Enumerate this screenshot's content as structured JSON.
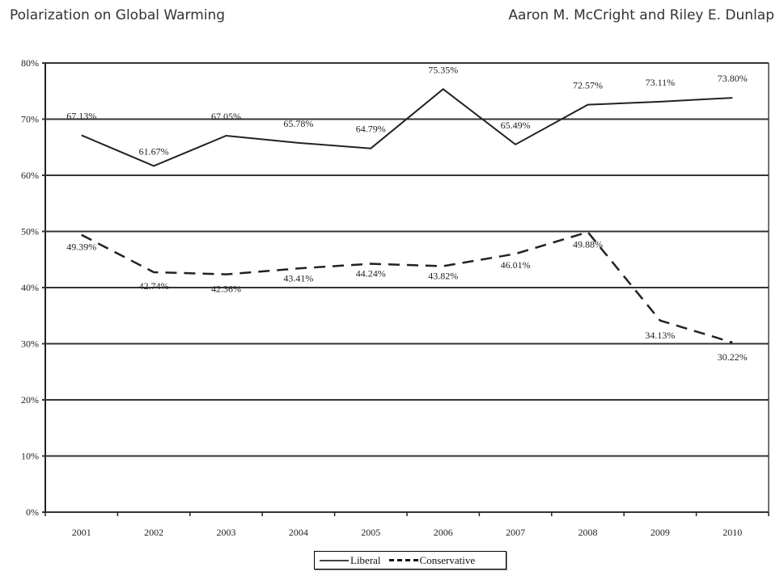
{
  "header": {
    "title": "Polarization on Global Warming",
    "authors": "Aaron M. McCright and Riley E. Dunlap"
  },
  "chart_data": {
    "type": "line",
    "title": "Polarization on Global Warming",
    "xlabel": "",
    "ylabel": "",
    "categories": [
      "2001",
      "2002",
      "2003",
      "2004",
      "2005",
      "2006",
      "2007",
      "2008",
      "2009",
      "2010"
    ],
    "ylim": [
      0,
      80
    ],
    "yticks": [
      "0%",
      "10%",
      "20%",
      "30%",
      "40%",
      "50%",
      "60%",
      "70%",
      "80%"
    ],
    "yticks_values": [
      0,
      10,
      20,
      30,
      40,
      50,
      60,
      70,
      80
    ],
    "grid": true,
    "legend_position": "bottom",
    "series": [
      {
        "name": "Liberal",
        "style": "solid",
        "color": "#222222",
        "values": [
          67.13,
          61.67,
          67.05,
          65.78,
          64.79,
          75.35,
          65.49,
          72.57,
          73.11,
          73.8
        ],
        "labels": [
          "67.13%",
          "61.67%",
          "67.05%",
          "65.78%",
          "64.79%",
          "75.35%",
          "65.49%",
          "72.57%",
          "73.11%",
          "73.80%"
        ]
      },
      {
        "name": "Conservative",
        "style": "dashed",
        "color": "#222222",
        "values": [
          49.39,
          42.74,
          42.36,
          43.41,
          44.24,
          43.82,
          46.01,
          49.88,
          34.13,
          30.22
        ],
        "labels": [
          "49.39%",
          "42.74%",
          "42.36%",
          "43.41%",
          "44.24%",
          "43.82%",
          "46.01%",
          "49.88%",
          "34.13%",
          "30.22%"
        ]
      }
    ]
  }
}
